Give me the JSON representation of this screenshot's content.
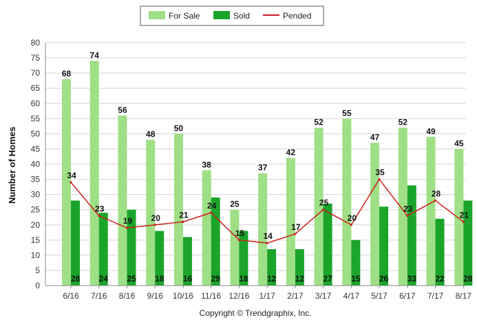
{
  "chart_data": {
    "type": "bar",
    "title": "",
    "xlabel": "",
    "ylabel": "Number of Homes",
    "ylim": [
      0,
      80
    ],
    "ytick_step": 5,
    "grid": true,
    "legend_position": "top-center",
    "categories": [
      "6/16",
      "7/16",
      "8/16",
      "9/16",
      "10/16",
      "11/16",
      "12/16",
      "1/17",
      "2/17",
      "3/17",
      "4/17",
      "5/17",
      "6/17",
      "7/17",
      "8/17"
    ],
    "series": [
      {
        "name": "For Sale",
        "kind": "bar",
        "color": "#9fdf86",
        "values": [
          68,
          74,
          56,
          48,
          50,
          38,
          25,
          37,
          42,
          52,
          55,
          47,
          52,
          49,
          45
        ]
      },
      {
        "name": "Sold",
        "kind": "bar",
        "color": "#1aa52a",
        "values": [
          28,
          24,
          25,
          18,
          16,
          29,
          18,
          12,
          12,
          27,
          15,
          26,
          33,
          22,
          28
        ]
      },
      {
        "name": "Pended",
        "kind": "line",
        "color": "#cc1f1f",
        "values": [
          34,
          23,
          19,
          20,
          21,
          24,
          15,
          14,
          17,
          25,
          20,
          35,
          23,
          28,
          21
        ]
      }
    ],
    "footer": "Copyright © Trendgraphix, Inc."
  }
}
